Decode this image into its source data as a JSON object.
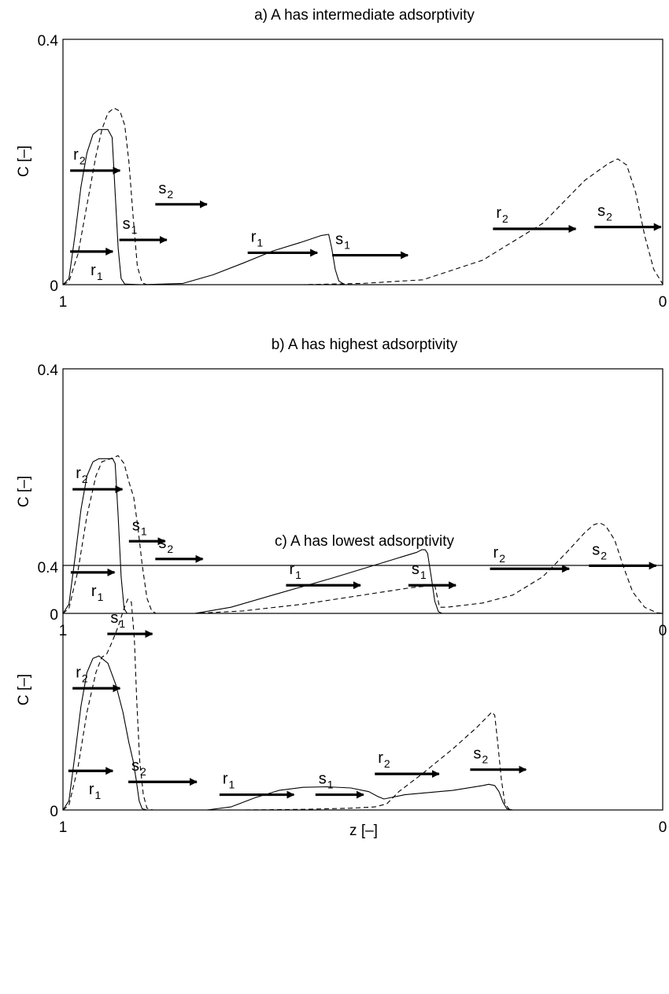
{
  "chart_data": [
    {
      "type": "line",
      "title": "a) A has intermediate adsorptivity",
      "xlabel": "",
      "ylabel": "C [–]",
      "xlim": [
        1,
        0
      ],
      "ylim": [
        0,
        0.4
      ],
      "x_ticks": [
        "1",
        "0"
      ],
      "y_ticks": [
        "0",
        "0.4"
      ],
      "grid": false,
      "series": [
        {
          "style": "solid",
          "points": [
            [
              1.0,
              0.0
            ],
            [
              0.99,
              0.01
            ],
            [
              0.98,
              0.08
            ],
            [
              0.97,
              0.16
            ],
            [
              0.96,
              0.215
            ],
            [
              0.95,
              0.245
            ],
            [
              0.94,
              0.253
            ],
            [
              0.925,
              0.253
            ],
            [
              0.918,
              0.24
            ],
            [
              0.913,
              0.15
            ],
            [
              0.908,
              0.06
            ],
            [
              0.903,
              0.01
            ],
            [
              0.897,
              0.001
            ],
            [
              0.87,
              0.0
            ],
            [
              0.8,
              0.002
            ],
            [
              0.75,
              0.016
            ],
            [
              0.7,
              0.035
            ],
            [
              0.65,
              0.055
            ],
            [
              0.6,
              0.07
            ],
            [
              0.57,
              0.08
            ],
            [
              0.557,
              0.082
            ],
            [
              0.552,
              0.06
            ],
            [
              0.546,
              0.025
            ],
            [
              0.54,
              0.006
            ],
            [
              0.53,
              0.0
            ],
            [
              0.0,
              0.0
            ]
          ]
        },
        {
          "style": "dashed",
          "points": [
            [
              1.0,
              0.0
            ],
            [
              0.99,
              0.005
            ],
            [
              0.975,
              0.05
            ],
            [
              0.96,
              0.13
            ],
            [
              0.945,
              0.21
            ],
            [
              0.935,
              0.253
            ],
            [
              0.925,
              0.28
            ],
            [
              0.915,
              0.288
            ],
            [
              0.905,
              0.283
            ],
            [
              0.897,
              0.26
            ],
            [
              0.89,
              0.2
            ],
            [
              0.883,
              0.11
            ],
            [
              0.876,
              0.03
            ],
            [
              0.868,
              0.003
            ],
            [
              0.86,
              0.0
            ],
            [
              0.8,
              0.0
            ],
            [
              0.6,
              0.0
            ],
            [
              0.5,
              0.002
            ],
            [
              0.4,
              0.008
            ],
            [
              0.3,
              0.04
            ],
            [
              0.2,
              0.1
            ],
            [
              0.13,
              0.17
            ],
            [
              0.09,
              0.198
            ],
            [
              0.075,
              0.205
            ],
            [
              0.06,
              0.195
            ],
            [
              0.045,
              0.15
            ],
            [
              0.03,
              0.08
            ],
            [
              0.015,
              0.025
            ],
            [
              0.0,
              0.001
            ]
          ]
        }
      ],
      "annotations": [
        {
          "label": "r",
          "sub": "2",
          "arrow_from": 0.988,
          "arrow_to": 0.905,
          "arrow_y": 0.186
        },
        {
          "label": "s",
          "sub": "2",
          "arrow_from": 0.846,
          "arrow_to": 0.76,
          "arrow_y": 0.131
        },
        {
          "label": "s",
          "sub": "1",
          "arrow_from": 0.906,
          "arrow_to": 0.827,
          "arrow_y": 0.073
        },
        {
          "label": "r",
          "sub": "1",
          "arrow_from": 0.988,
          "arrow_to": 0.917,
          "arrow_y": 0.054
        },
        {
          "label": "r",
          "sub": "1",
          "arrow_from": 0.692,
          "arrow_to": 0.576,
          "arrow_y": 0.052
        },
        {
          "label": "s",
          "sub": "1",
          "arrow_from": 0.551,
          "arrow_to": 0.425,
          "arrow_y": 0.048
        },
        {
          "label": "r",
          "sub": "2",
          "arrow_from": 0.283,
          "arrow_to": 0.145,
          "arrow_y": 0.091
        },
        {
          "label": "s",
          "sub": "2",
          "arrow_from": 0.114,
          "arrow_to": 0.003,
          "arrow_y": 0.094
        }
      ]
    },
    {
      "type": "line",
      "title": "b) A has highest adsorptivity",
      "xlabel": "",
      "ylabel": "C [–]",
      "xlim": [
        1,
        0
      ],
      "ylim": [
        0,
        0.4
      ],
      "x_ticks": [
        "1",
        "0"
      ],
      "y_ticks": [
        "0",
        "0.4"
      ],
      "grid": false,
      "series": [
        {
          "style": "solid",
          "points": [
            [
              1.0,
              0.0
            ],
            [
              0.99,
              0.015
            ],
            [
              0.98,
              0.09
            ],
            [
              0.97,
              0.17
            ],
            [
              0.96,
              0.225
            ],
            [
              0.95,
              0.248
            ],
            [
              0.94,
              0.253
            ],
            [
              0.917,
              0.253
            ],
            [
              0.913,
              0.245
            ],
            [
              0.908,
              0.16
            ],
            [
              0.903,
              0.06
            ],
            [
              0.898,
              0.008
            ],
            [
              0.893,
              0.0
            ],
            [
              0.78,
              0.0
            ],
            [
              0.72,
              0.01
            ],
            [
              0.65,
              0.03
            ],
            [
              0.55,
              0.058
            ],
            [
              0.45,
              0.088
            ],
            [
              0.41,
              0.1
            ],
            [
              0.402,
              0.104
            ],
            [
              0.396,
              0.104
            ],
            [
              0.392,
              0.098
            ],
            [
              0.386,
              0.06
            ],
            [
              0.38,
              0.02
            ],
            [
              0.374,
              0.003
            ],
            [
              0.368,
              0.0
            ],
            [
              0.0,
              0.0
            ]
          ]
        },
        {
          "style": "dashed",
          "points": [
            [
              1.0,
              0.0
            ],
            [
              0.99,
              0.008
            ],
            [
              0.975,
              0.07
            ],
            [
              0.96,
              0.16
            ],
            [
              0.945,
              0.225
            ],
            [
              0.935,
              0.248
            ],
            [
              0.915,
              0.255
            ],
            [
              0.908,
              0.258
            ],
            [
              0.898,
              0.245
            ],
            [
              0.89,
              0.215
            ],
            [
              0.882,
              0.19
            ],
            [
              0.875,
              0.14
            ],
            [
              0.868,
              0.08
            ],
            [
              0.86,
              0.025
            ],
            [
              0.852,
              0.004
            ],
            [
              0.845,
              0.0
            ],
            [
              0.78,
              0.0
            ],
            [
              0.7,
              0.004
            ],
            [
              0.6,
              0.015
            ],
            [
              0.5,
              0.03
            ],
            [
              0.42,
              0.042
            ],
            [
              0.38,
              0.046
            ],
            [
              0.372,
              0.01
            ],
            [
              0.36,
              0.01
            ],
            [
              0.3,
              0.017
            ],
            [
              0.25,
              0.03
            ],
            [
              0.2,
              0.06
            ],
            [
              0.16,
              0.1
            ],
            [
              0.13,
              0.132
            ],
            [
              0.115,
              0.145
            ],
            [
              0.105,
              0.148
            ],
            [
              0.095,
              0.143
            ],
            [
              0.08,
              0.12
            ],
            [
              0.065,
              0.075
            ],
            [
              0.05,
              0.035
            ],
            [
              0.03,
              0.01
            ],
            [
              0.01,
              0.001
            ],
            [
              0.0,
              0.0
            ]
          ]
        }
      ],
      "annotations": [
        {
          "label": "r",
          "sub": "2",
          "arrow_from": 0.984,
          "arrow_to": 0.901,
          "arrow_y": 0.203
        },
        {
          "label": "s",
          "sub": "1",
          "arrow_from": 0.89,
          "arrow_to": 0.83,
          "arrow_y": 0.118
        },
        {
          "label": "s",
          "sub": "2",
          "arrow_from": 0.846,
          "arrow_to": 0.767,
          "arrow_y": 0.089
        },
        {
          "label": "r",
          "sub": "1",
          "arrow_from": 0.987,
          "arrow_to": 0.914,
          "arrow_y": 0.067
        },
        {
          "label": "r",
          "sub": "1",
          "arrow_from": 0.628,
          "arrow_to": 0.504,
          "arrow_y": 0.046
        },
        {
          "label": "s",
          "sub": "1",
          "arrow_from": 0.424,
          "arrow_to": 0.345,
          "arrow_y": 0.046
        },
        {
          "label": "r",
          "sub": "2",
          "arrow_from": 0.288,
          "arrow_to": 0.156,
          "arrow_y": 0.073
        },
        {
          "label": "s",
          "sub": "2",
          "arrow_from": 0.123,
          "arrow_to": 0.011,
          "arrow_y": 0.078
        }
      ]
    },
    {
      "type": "line",
      "title": "c) A has lowest adsorptivity",
      "xlabel": "z [–]",
      "ylabel": "C [–]",
      "xlim": [
        1,
        0
      ],
      "ylim": [
        0,
        0.4
      ],
      "x_ticks": [
        "1",
        "0"
      ],
      "y_ticks": [
        "0",
        "0.4"
      ],
      "grid": false,
      "series": [
        {
          "style": "solid",
          "points": [
            [
              1.0,
              0.0
            ],
            [
              0.99,
              0.015
            ],
            [
              0.98,
              0.09
            ],
            [
              0.97,
              0.17
            ],
            [
              0.96,
              0.225
            ],
            [
              0.95,
              0.248
            ],
            [
              0.94,
              0.252
            ],
            [
              0.925,
              0.24
            ],
            [
              0.912,
              0.205
            ],
            [
              0.9,
              0.16
            ],
            [
              0.89,
              0.11
            ],
            [
              0.883,
              0.08
            ],
            [
              0.878,
              0.05
            ],
            [
              0.873,
              0.015
            ],
            [
              0.868,
              0.002
            ],
            [
              0.86,
              0.0
            ],
            [
              0.76,
              0.0
            ],
            [
              0.72,
              0.005
            ],
            [
              0.68,
              0.02
            ],
            [
              0.64,
              0.032
            ],
            [
              0.6,
              0.037
            ],
            [
              0.56,
              0.038
            ],
            [
              0.52,
              0.036
            ],
            [
              0.49,
              0.03
            ],
            [
              0.475,
              0.022
            ],
            [
              0.465,
              0.018
            ],
            [
              0.455,
              0.02
            ],
            [
              0.43,
              0.025
            ],
            [
              0.35,
              0.032
            ],
            [
              0.3,
              0.04
            ],
            [
              0.29,
              0.042
            ],
            [
              0.28,
              0.04
            ],
            [
              0.273,
              0.03
            ],
            [
              0.266,
              0.012
            ],
            [
              0.26,
              0.002
            ],
            [
              0.25,
              0.0
            ],
            [
              0.0,
              0.0
            ]
          ]
        },
        {
          "style": "dashed",
          "points": [
            [
              1.0,
              0.0
            ],
            [
              0.99,
              0.008
            ],
            [
              0.975,
              0.07
            ],
            [
              0.96,
              0.16
            ],
            [
              0.945,
              0.225
            ],
            [
              0.935,
              0.25
            ],
            [
              0.927,
              0.255
            ],
            [
              0.918,
              0.275
            ],
            [
              0.908,
              0.3
            ],
            [
              0.898,
              0.33
            ],
            [
              0.892,
              0.345
            ],
            [
              0.886,
              0.34
            ],
            [
              0.881,
              0.28
            ],
            [
              0.877,
              0.18
            ],
            [
              0.872,
              0.08
            ],
            [
              0.866,
              0.025
            ],
            [
              0.86,
              0.003
            ],
            [
              0.85,
              0.0
            ],
            [
              0.76,
              0.0
            ],
            [
              0.7,
              0.0
            ],
            [
              0.6,
              0.001
            ],
            [
              0.52,
              0.003
            ],
            [
              0.48,
              0.005
            ],
            [
              0.46,
              0.01
            ],
            [
              0.44,
              0.03
            ],
            [
              0.4,
              0.06
            ],
            [
              0.35,
              0.1
            ],
            [
              0.31,
              0.135
            ],
            [
              0.29,
              0.155
            ],
            [
              0.285,
              0.16
            ],
            [
              0.28,
              0.155
            ],
            [
              0.275,
              0.11
            ],
            [
              0.269,
              0.05
            ],
            [
              0.263,
              0.01
            ],
            [
              0.255,
              0.0
            ],
            [
              0.0,
              0.0
            ]
          ]
        }
      ],
      "annotations": [
        {
          "label": "s",
          "sub": "1",
          "arrow_from": 0.926,
          "arrow_to": 0.851,
          "arrow_y": 0.288
        },
        {
          "label": "r",
          "sub": "2",
          "arrow_from": 0.984,
          "arrow_to": 0.905,
          "arrow_y": 0.199
        },
        {
          "label": "r",
          "sub": "1",
          "arrow_from": 0.991,
          "arrow_to": 0.917,
          "arrow_y": 0.064
        },
        {
          "label": "s",
          "sub": "2",
          "arrow_from": 0.891,
          "arrow_to": 0.777,
          "arrow_y": 0.046
        },
        {
          "label": "r",
          "sub": "1",
          "arrow_from": 0.739,
          "arrow_to": 0.615,
          "arrow_y": 0.025
        },
        {
          "label": "s",
          "sub": "1",
          "arrow_from": 0.579,
          "arrow_to": 0.499,
          "arrow_y": 0.025
        },
        {
          "label": "r",
          "sub": "2",
          "arrow_from": 0.48,
          "arrow_to": 0.373,
          "arrow_y": 0.059
        },
        {
          "label": "s",
          "sub": "2",
          "arrow_from": 0.321,
          "arrow_to": 0.228,
          "arrow_y": 0.066
        }
      ]
    }
  ]
}
